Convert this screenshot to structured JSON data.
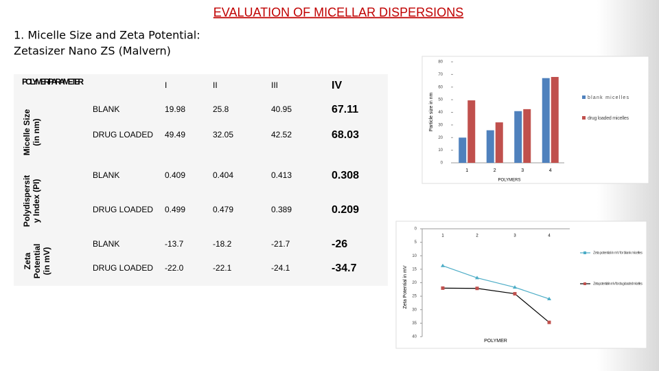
{
  "title": "EVALUATION OF MICELLAR DISPERSIONS",
  "subtitle": [
    "1.  Micelle Size and Zeta Potential:",
    "Zetasizer Nano ZS (Malvern)"
  ],
  "table": {
    "header": [
      "POLYMER/ PARAMETER",
      "I",
      "II",
      "III",
      "IV"
    ],
    "groups": [
      {
        "label": [
          "Micelle Size",
          "(in nm)"
        ],
        "rows": [
          [
            "BLANK",
            "19.98",
            "25.8",
            "40.95",
            "67.11"
          ],
          [
            "DRUG LOADED",
            "49.49",
            "32.05",
            "42.52",
            "68.03"
          ]
        ]
      },
      {
        "label": [
          "Polydispersit",
          "y Index (PI)"
        ],
        "rows": [
          [
            "BLANK",
            "0.409",
            "0.404",
            "0.413",
            "0.308"
          ],
          [
            "DRUG LOADED",
            "0.499",
            "0.479",
            "0.389",
            "0.209"
          ]
        ]
      },
      {
        "label": [
          "Zeta",
          "Potential",
          "(in mV)"
        ],
        "rows": [
          [
            "BLANK",
            "-13.7",
            "-18.2",
            "-21.7",
            "-26"
          ],
          [
            "DRUG LOADED",
            "-22.0",
            "-22.1",
            "-24.1",
            "-34.7"
          ]
        ]
      }
    ]
  },
  "chart_data": [
    {
      "type": "bar",
      "y_label": "Particle size in nm",
      "x_label": "POLYMERS",
      "categories": [
        "1",
        "2",
        "3",
        "4"
      ],
      "series": [
        {
          "name": "blank micelles",
          "color": "#4f81bd",
          "values": [
            19.98,
            25.8,
            40.95,
            67.11
          ]
        },
        {
          "name": "drug loaded micelles",
          "color": "#c0504d",
          "values": [
            49.49,
            32.05,
            42.52,
            68.03
          ]
        }
      ],
      "ylim": [
        0,
        80
      ],
      "yticks": [
        0,
        10,
        20,
        30,
        40,
        50,
        60,
        70,
        80
      ]
    },
    {
      "type": "line",
      "y_label": "Zeta Potential in mV",
      "x_label": "POLYMER",
      "categories": [
        "1",
        "2",
        "3",
        "4"
      ],
      "series": [
        {
          "name": "Zeta potential in mV for blank micelles",
          "color": "#4bacc6",
          "line_color": "#4bacc6",
          "values": [
            -13.7,
            -18.2,
            -21.7,
            -26
          ]
        },
        {
          "name": "Zeta potential in mV for drug loaded micelles",
          "color": "#c0504d",
          "line_color": "#000000",
          "values": [
            -22.0,
            -22.1,
            -24.1,
            -34.7
          ]
        }
      ],
      "ylim": [
        0,
        -40
      ],
      "yticks": [
        0,
        {
          "value": -5,
          "label": "5"
        },
        {
          "value": -10,
          "label": "10"
        },
        {
          "value": -15,
          "label": "15"
        },
        {
          "value": -20,
          "label": "20"
        },
        {
          "value": -25,
          "label": "25"
        },
        {
          "value": -30,
          "label": "30"
        },
        {
          "value": -35,
          "label": "35"
        },
        {
          "value": -40,
          "label": "40"
        }
      ]
    }
  ]
}
